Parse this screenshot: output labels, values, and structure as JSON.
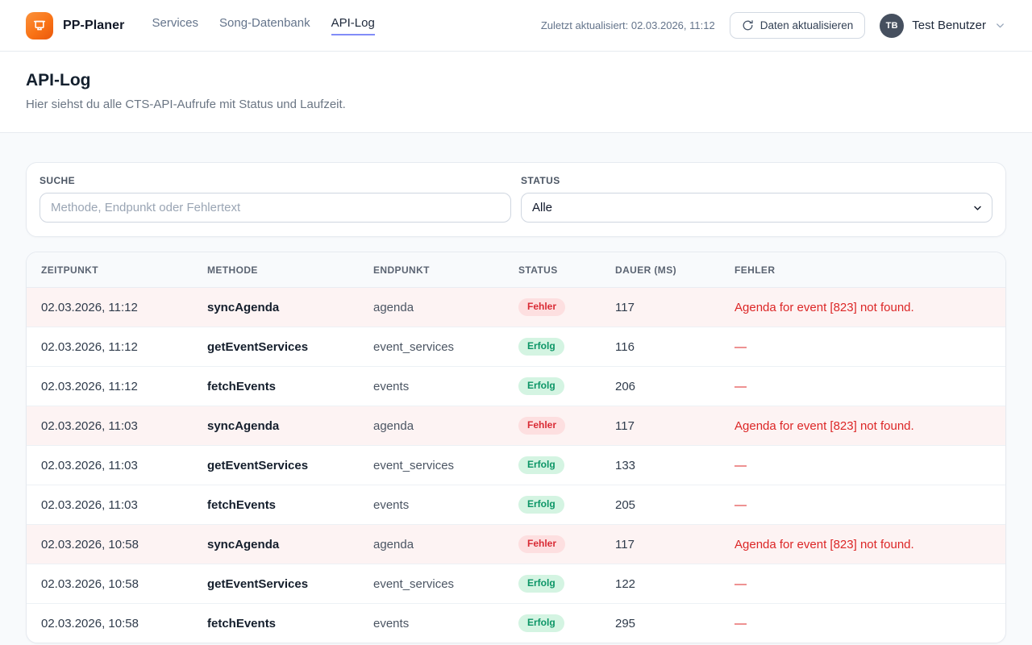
{
  "header": {
    "brand": "PP-Planer",
    "nav": [
      {
        "label": "Services",
        "active": false
      },
      {
        "label": "Song-Datenbank",
        "active": false
      },
      {
        "label": "API-Log",
        "active": true
      }
    ],
    "last_updated": "Zuletzt aktualisiert: 02.03.2026, 11:12",
    "refresh_button_label": "Daten aktualisieren",
    "user": {
      "initials": "TB",
      "name": "Test Benutzer"
    }
  },
  "page": {
    "title": "API-Log",
    "subtitle": "Hier siehst du alle CTS-API-Aufrufe mit Status und Laufzeit."
  },
  "filters": {
    "search": {
      "label": "Suche",
      "placeholder": "Methode, Endpunkt oder Fehlertext",
      "value": ""
    },
    "status": {
      "label": "Status",
      "selected": "Alle"
    }
  },
  "table": {
    "columns": [
      "Zeitpunkt",
      "Methode",
      "Endpunkt",
      "Status",
      "Dauer (ms)",
      "Fehler"
    ],
    "rows": [
      {
        "timestamp": "02.03.2026, 11:12",
        "method": "syncAgenda",
        "endpoint": "agenda",
        "status": "Fehler",
        "status_type": "error",
        "duration_ms": "117",
        "error": "Agenda for event [823] not found."
      },
      {
        "timestamp": "02.03.2026, 11:12",
        "method": "getEventServices",
        "endpoint": "event_services",
        "status": "Erfolg",
        "status_type": "success",
        "duration_ms": "116",
        "error": "—"
      },
      {
        "timestamp": "02.03.2026, 11:12",
        "method": "fetchEvents",
        "endpoint": "events",
        "status": "Erfolg",
        "status_type": "success",
        "duration_ms": "206",
        "error": "—"
      },
      {
        "timestamp": "02.03.2026, 11:03",
        "method": "syncAgenda",
        "endpoint": "agenda",
        "status": "Fehler",
        "status_type": "error",
        "duration_ms": "117",
        "error": "Agenda for event [823] not found."
      },
      {
        "timestamp": "02.03.2026, 11:03",
        "method": "getEventServices",
        "endpoint": "event_services",
        "status": "Erfolg",
        "status_type": "success",
        "duration_ms": "133",
        "error": "—"
      },
      {
        "timestamp": "02.03.2026, 11:03",
        "method": "fetchEvents",
        "endpoint": "events",
        "status": "Erfolg",
        "status_type": "success",
        "duration_ms": "205",
        "error": "—"
      },
      {
        "timestamp": "02.03.2026, 10:58",
        "method": "syncAgenda",
        "endpoint": "agenda",
        "status": "Fehler",
        "status_type": "error",
        "duration_ms": "117",
        "error": "Agenda for event [823] not found."
      },
      {
        "timestamp": "02.03.2026, 10:58",
        "method": "getEventServices",
        "endpoint": "event_services",
        "status": "Erfolg",
        "status_type": "success",
        "duration_ms": "122",
        "error": "—"
      },
      {
        "timestamp": "02.03.2026, 10:58",
        "method": "fetchEvents",
        "endpoint": "events",
        "status": "Erfolg",
        "status_type": "success",
        "duration_ms": "295",
        "error": "—"
      }
    ]
  },
  "colors": {
    "brand_orange": "#f97316",
    "nav_active_underline": "#818cf8",
    "error_text": "#dc2626",
    "error_row_bg": "#fdf3f3",
    "error_badge_bg": "#fddfe0",
    "success_text": "#0c9566",
    "success_badge_bg": "#d4f4e2",
    "page_bg": "#f8fafc"
  }
}
